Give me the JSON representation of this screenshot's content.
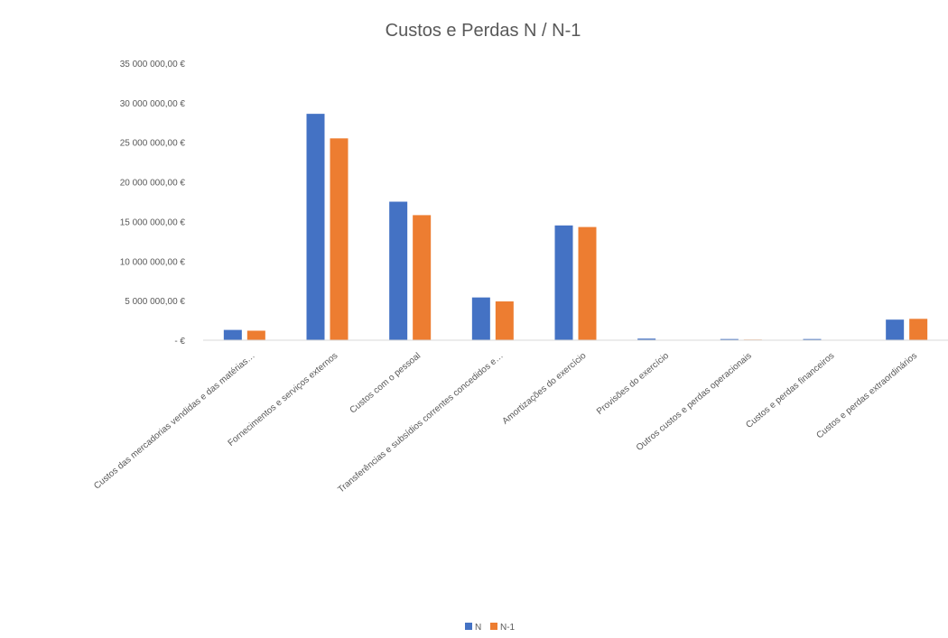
{
  "chart_data": {
    "type": "bar",
    "title": "Custos e Perdas N / N-1",
    "xlabel": "",
    "ylabel": "",
    "ylim": [
      0,
      35000000
    ],
    "yticks": [
      0,
      5000000,
      10000000,
      15000000,
      20000000,
      25000000,
      30000000,
      35000000
    ],
    "ytick_labels": [
      "- €",
      "5 000 000,00 €",
      "10 000 000,00 €",
      "15 000 000,00 €",
      "20 000 000,00 €",
      "25 000 000,00 €",
      "30 000 000,00 €",
      "35 000 000,00 €"
    ],
    "categories": [
      "Custos das mercadorias vendidas e das matérias…",
      "Fornecimentos e serviços externos",
      "Custos com o pessoal",
      "Transferências e subsídios correntes concedidos e…",
      "Amortizações do exercício",
      "Provisões do exercício",
      "Outros custos e perdas operacionais",
      "Custos e perdas financeiros",
      "Custos e perdas extraordinários"
    ],
    "series": [
      {
        "name": "N",
        "color": "#4472C4",
        "values": [
          1300000,
          28600000,
          17500000,
          5400000,
          14500000,
          200000,
          150000,
          150000,
          2600000
        ]
      },
      {
        "name": "N-1",
        "color": "#ED7D31",
        "values": [
          1200000,
          25500000,
          15800000,
          4900000,
          14300000,
          50000,
          80000,
          30000,
          2700000
        ]
      }
    ],
    "grid": false,
    "legend_position": "bottom"
  }
}
